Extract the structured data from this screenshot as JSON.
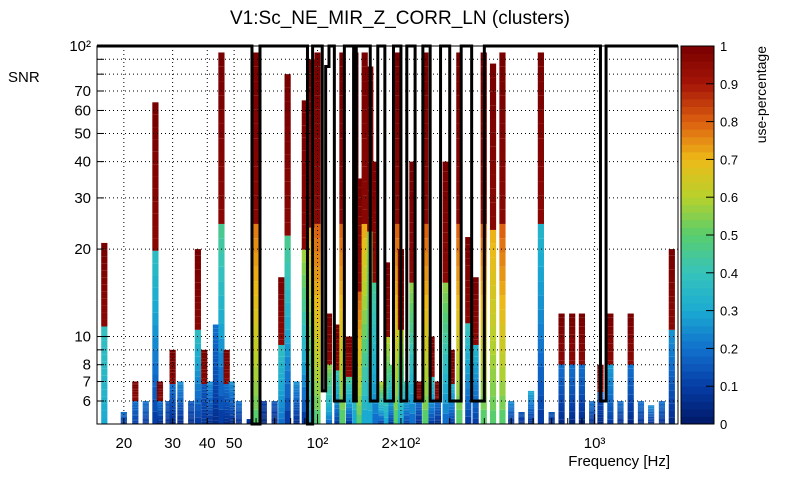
{
  "chart_data": {
    "type": "heatmap",
    "title": "V1:Sc_NE_MIR_Z_CORR_LN (clusters)",
    "xlabel": "Frequency [Hz]",
    "ylabel": "SNR",
    "zlabel": "use-percentage",
    "xscale": "log",
    "yscale": "log",
    "xlim": [
      16,
      2000
    ],
    "ylim": [
      5,
      100
    ],
    "zlim": [
      0,
      1
    ],
    "x_tick_labels": [
      {
        "value": 20,
        "label": "20"
      },
      {
        "value": 30,
        "label": "30"
      },
      {
        "value": 40,
        "label": "40"
      },
      {
        "value": 50,
        "label": "50"
      },
      {
        "value": 100,
        "label": "10²"
      },
      {
        "value": 200,
        "label": "2×10²"
      },
      {
        "value": 1000,
        "label": "10³"
      }
    ],
    "y_tick_labels": [
      {
        "value": 6,
        "label": "6"
      },
      {
        "value": 7,
        "label": "7"
      },
      {
        "value": 8,
        "label": "8"
      },
      {
        "value": 10,
        "label": "10"
      },
      {
        "value": 20,
        "label": "20"
      },
      {
        "value": 30,
        "label": "30"
      },
      {
        "value": 40,
        "label": "40"
      },
      {
        "value": 50,
        "label": "50"
      },
      {
        "value": 60,
        "label": "60"
      },
      {
        "value": 70,
        "label": "70"
      },
      {
        "value": 100,
        "label": "10²"
      }
    ],
    "z_tick_labels": [
      "0",
      "0.1",
      "0.2",
      "0.3",
      "0.4",
      "0.5",
      "0.6",
      "0.7",
      "0.8",
      "0.9",
      "1"
    ],
    "grid": true,
    "columns": [
      {
        "f": 17,
        "top": 21,
        "low": 0.3,
        "high": 0.45,
        "cap": 1
      },
      {
        "f": 20,
        "top": 5.5,
        "low": 0.08,
        "high": 0.2
      },
      {
        "f": 22,
        "top": 7,
        "low": 0.1,
        "high": 0.25,
        "cap": 1
      },
      {
        "f": 24,
        "top": 6,
        "low": 0.08,
        "high": 0.2
      },
      {
        "f": 26,
        "top": 64,
        "low": 0.1,
        "high": 0.55,
        "cap": 1
      },
      {
        "f": 27,
        "top": 7,
        "low": 0.05,
        "high": 0.3,
        "cap": 1
      },
      {
        "f": 29,
        "top": 6,
        "low": 0.05,
        "high": 0.15
      },
      {
        "f": 30,
        "top": 9,
        "low": 0.05,
        "high": 0.3,
        "cap": 1
      },
      {
        "f": 32,
        "top": 7,
        "low": 0.05,
        "high": 0.25
      },
      {
        "f": 35,
        "top": 6,
        "low": 0.05,
        "high": 0.15
      },
      {
        "f": 37,
        "top": 20,
        "low": 0.1,
        "high": 0.55,
        "cap": 1
      },
      {
        "f": 39,
        "top": 9,
        "low": 0.08,
        "high": 0.2,
        "cap": 1
      },
      {
        "f": 41,
        "top": 7,
        "low": 0.05,
        "high": 0.25
      },
      {
        "f": 43,
        "top": 11,
        "low": 0.05,
        "high": 0.2
      },
      {
        "f": 45,
        "top": 95,
        "low": 0.1,
        "high": 0.7,
        "cap": 1
      },
      {
        "f": 47,
        "top": 9,
        "low": 0.05,
        "high": 0.3,
        "cap": 1
      },
      {
        "f": 49,
        "top": 7,
        "low": 0.05,
        "high": 0.25
      },
      {
        "f": 52,
        "top": 6,
        "low": 0.05,
        "high": 0.2
      },
      {
        "f": 57,
        "top": 5.2,
        "low": 0.02,
        "high": 0.1
      },
      {
        "f": 60,
        "top": 95,
        "low": 0.5,
        "high": 0.95,
        "cap": 1
      },
      {
        "f": 64,
        "top": 6,
        "low": 0.02,
        "high": 0.1
      },
      {
        "f": 70,
        "top": 6,
        "low": 0.02,
        "high": 0.15
      },
      {
        "f": 74,
        "top": 16,
        "low": 0.2,
        "high": 0.5,
        "cap": 1
      },
      {
        "f": 78,
        "top": 80,
        "low": 0.1,
        "high": 0.7,
        "cap": 1
      },
      {
        "f": 84,
        "top": 7,
        "low": 0.05,
        "high": 0.25
      },
      {
        "f": 90,
        "top": 65,
        "low": 0.1,
        "high": 0.9,
        "cap": 1
      },
      {
        "f": 95,
        "top": 90,
        "low": 0.3,
        "high": 1,
        "cap": 1
      },
      {
        "f": 100,
        "top": 95,
        "low": 0.5,
        "high": 1,
        "cap": 1
      },
      {
        "f": 110,
        "top": 12,
        "low": 0.2,
        "high": 0.8,
        "cap": 1
      },
      {
        "f": 118,
        "top": 11,
        "low": 0.1,
        "high": 0.6,
        "cap": 1
      },
      {
        "f": 123,
        "top": 95,
        "low": 0.5,
        "high": 1,
        "cap": 1
      },
      {
        "f": 130,
        "top": 10,
        "low": 0.1,
        "high": 0.7,
        "cap": 1
      },
      {
        "f": 137,
        "top": 95,
        "low": 0.3,
        "high": 1,
        "cap": 1
      },
      {
        "f": 142,
        "top": 35,
        "low": 0.5,
        "high": 1,
        "cap": 1
      },
      {
        "f": 148,
        "top": 95,
        "low": 0.3,
        "high": 1,
        "cap": 1
      },
      {
        "f": 155,
        "top": 85,
        "low": 0.3,
        "high": 0.7,
        "cap": 1
      },
      {
        "f": 162,
        "top": 40,
        "low": 0.2,
        "high": 0.6,
        "cap": 1
      },
      {
        "f": 170,
        "top": 7,
        "low": 0.1,
        "high": 0.6
      },
      {
        "f": 178,
        "top": 18,
        "low": 0.3,
        "high": 0.8,
        "cap": 1
      },
      {
        "f": 185,
        "top": 8,
        "low": 0.1,
        "high": 0.5
      },
      {
        "f": 193,
        "top": 95,
        "low": 0.5,
        "high": 1,
        "cap": 1
      },
      {
        "f": 200,
        "top": 20,
        "low": 0.3,
        "high": 0.8,
        "cap": 1
      },
      {
        "f": 210,
        "top": 7,
        "low": 0.1,
        "high": 0.4
      },
      {
        "f": 220,
        "top": 40,
        "low": 0.2,
        "high": 0.8,
        "cap": 1
      },
      {
        "f": 232,
        "top": 7,
        "low": 0.05,
        "high": 0.3,
        "cap": 1
      },
      {
        "f": 245,
        "top": 95,
        "low": 0.5,
        "high": 1,
        "cap": 1
      },
      {
        "f": 258,
        "top": 10,
        "low": 0.1,
        "high": 0.6,
        "cap": 1
      },
      {
        "f": 272,
        "top": 7,
        "low": 0.05,
        "high": 0.3,
        "cap": 1
      },
      {
        "f": 290,
        "top": 40,
        "low": 0.2,
        "high": 0.8,
        "cap": 1
      },
      {
        "f": 305,
        "top": 9,
        "low": 0.1,
        "high": 0.5,
        "cap": 1
      },
      {
        "f": 325,
        "top": 95,
        "low": 0.5,
        "high": 1,
        "cap": 1
      },
      {
        "f": 350,
        "top": 22,
        "low": 0.1,
        "high": 0.6,
        "cap": 1
      },
      {
        "f": 372,
        "top": 16,
        "low": 0.1,
        "high": 0.5,
        "cap": 1
      },
      {
        "f": 398,
        "top": 95,
        "low": 0.5,
        "high": 1,
        "cap": 1
      },
      {
        "f": 430,
        "top": 87,
        "low": 0.5,
        "high": 0.85,
        "cap": 1
      },
      {
        "f": 465,
        "top": 95,
        "low": 0.5,
        "high": 1,
        "cap": 1
      },
      {
        "f": 500,
        "top": 6,
        "low": 0.05,
        "high": 0.25
      },
      {
        "f": 545,
        "top": 5.5,
        "low": 0.05,
        "high": 0.15
      },
      {
        "f": 590,
        "top": 6.5,
        "low": 0.05,
        "high": 0.3
      },
      {
        "f": 640,
        "top": 95,
        "low": 0.1,
        "high": 0.5,
        "cap": 1
      },
      {
        "f": 700,
        "top": 5.5,
        "low": 0.05,
        "high": 0.15
      },
      {
        "f": 760,
        "top": 12,
        "low": 0.05,
        "high": 0.3,
        "cap": 1
      },
      {
        "f": 830,
        "top": 12,
        "low": 0.05,
        "high": 0.3,
        "cap": 1
      },
      {
        "f": 900,
        "top": 12,
        "low": 0.05,
        "high": 0.3,
        "cap": 1
      },
      {
        "f": 980,
        "top": 6,
        "low": 0.05,
        "high": 0.2
      },
      {
        "f": 1050,
        "top": 8,
        "low": 0.05,
        "high": 0.2,
        "cap": 1
      },
      {
        "f": 1140,
        "top": 12,
        "low": 0.1,
        "high": 0.4,
        "cap": 1
      },
      {
        "f": 1240,
        "top": 6,
        "low": 0.05,
        "high": 0.2
      },
      {
        "f": 1350,
        "top": 12,
        "low": 0.05,
        "high": 0.3,
        "cap": 1
      },
      {
        "f": 1470,
        "top": 6,
        "low": 0.05,
        "high": 0.2
      },
      {
        "f": 1600,
        "top": 5.8,
        "low": 0.05,
        "high": 0.25
      },
      {
        "f": 1750,
        "top": 6,
        "low": 0.05,
        "high": 0.2
      },
      {
        "f": 1900,
        "top": 20,
        "low": 0.05,
        "high": 0.4,
        "cap": 1
      }
    ],
    "envelope_segments": [
      {
        "from": 16,
        "to": 58,
        "level": 100
      },
      {
        "from": 58,
        "to": 62,
        "level": 5
      },
      {
        "from": 62,
        "to": 92,
        "level": 100
      },
      {
        "from": 92,
        "to": 96,
        "level": 5
      },
      {
        "from": 96,
        "to": 104,
        "level": 100
      },
      {
        "from": 104,
        "to": 107,
        "level": 6.5
      },
      {
        "from": 107,
        "to": 110,
        "level": 85
      },
      {
        "from": 110,
        "to": 115,
        "level": 100
      },
      {
        "from": 115,
        "to": 125,
        "level": 6
      },
      {
        "from": 125,
        "to": 135,
        "level": 100
      },
      {
        "from": 135,
        "to": 138,
        "level": 6
      },
      {
        "from": 138,
        "to": 155,
        "level": 100
      },
      {
        "from": 155,
        "to": 165,
        "level": 6
      },
      {
        "from": 165,
        "to": 175,
        "level": 100
      },
      {
        "from": 175,
        "to": 188,
        "level": 6
      },
      {
        "from": 188,
        "to": 200,
        "level": 100
      },
      {
        "from": 200,
        "to": 210,
        "level": 6
      },
      {
        "from": 210,
        "to": 225,
        "level": 100
      },
      {
        "from": 225,
        "to": 240,
        "level": 6
      },
      {
        "from": 240,
        "to": 255,
        "level": 100
      },
      {
        "from": 255,
        "to": 278,
        "level": 6
      },
      {
        "from": 278,
        "to": 300,
        "level": 100
      },
      {
        "from": 300,
        "to": 330,
        "level": 6
      },
      {
        "from": 330,
        "to": 360,
        "level": 100
      },
      {
        "from": 360,
        "to": 400,
        "level": 6
      },
      {
        "from": 400,
        "to": 1050,
        "level": 100
      },
      {
        "from": 1050,
        "to": 1100,
        "level": 6
      },
      {
        "from": 1100,
        "to": 2000,
        "level": 100
      }
    ]
  }
}
